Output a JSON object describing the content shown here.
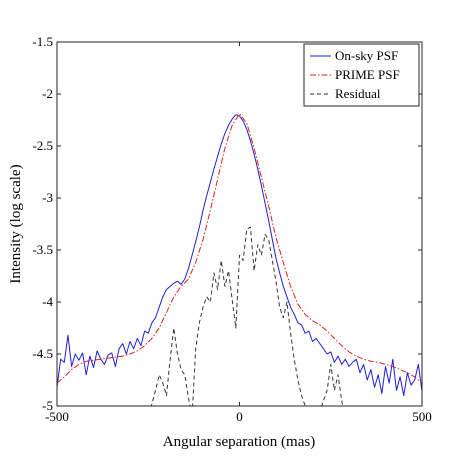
{
  "chart_data": {
    "type": "line",
    "title": "",
    "xlabel": "Angular separation (mas)",
    "ylabel": "Intensity (log scale)",
    "xlim": [
      -500,
      500
    ],
    "ylim": [
      -5,
      -1.5
    ],
    "x_ticks": [
      -500,
      0,
      500
    ],
    "y_ticks": [
      -1.5,
      -2,
      -2.5,
      -3,
      -3.5,
      -4,
      -4.5,
      -5
    ],
    "x_tick_labels": [
      "-500",
      "0",
      "500"
    ],
    "y_tick_labels": [
      "-1.5",
      "-2",
      "-2.5",
      "-3",
      "-3.5",
      "-4",
      "-4.5",
      "-5"
    ],
    "grid": false,
    "legend_position": "top-right",
    "series": [
      {
        "name": "On-sky PSF",
        "color": "#1f1fd6",
        "style": "solid",
        "x": [
          -500,
          -490,
          -480,
          -470,
          -460,
          -450,
          -440,
          -430,
          -420,
          -410,
          -400,
          -390,
          -380,
          -370,
          -360,
          -350,
          -340,
          -330,
          -320,
          -310,
          -300,
          -290,
          -280,
          -270,
          -260,
          -250,
          -240,
          -230,
          -220,
          -210,
          -200,
          -190,
          -180,
          -170,
          -160,
          -150,
          -140,
          -130,
          -120,
          -110,
          -100,
          -90,
          -80,
          -70,
          -60,
          -50,
          -40,
          -30,
          -20,
          -10,
          0,
          10,
          20,
          30,
          40,
          50,
          60,
          70,
          80,
          90,
          100,
          110,
          120,
          130,
          140,
          150,
          160,
          170,
          180,
          190,
          200,
          210,
          220,
          230,
          240,
          250,
          260,
          270,
          280,
          290,
          300,
          310,
          320,
          330,
          340,
          350,
          360,
          370,
          380,
          390,
          400,
          410,
          420,
          430,
          440,
          450,
          460,
          470,
          480,
          490,
          500
        ],
        "y": [
          -4.82,
          -4.55,
          -4.58,
          -4.32,
          -4.62,
          -4.5,
          -4.56,
          -4.49,
          -4.7,
          -4.52,
          -4.63,
          -4.47,
          -4.55,
          -4.6,
          -4.51,
          -4.49,
          -4.62,
          -4.45,
          -4.4,
          -4.5,
          -4.38,
          -4.45,
          -4.35,
          -4.42,
          -4.28,
          -4.3,
          -4.2,
          -4.15,
          -4.05,
          -3.95,
          -3.88,
          -3.85,
          -3.82,
          -3.8,
          -3.83,
          -3.78,
          -3.68,
          -3.55,
          -3.42,
          -3.28,
          -3.12,
          -2.98,
          -2.85,
          -2.72,
          -2.6,
          -2.48,
          -2.38,
          -2.3,
          -2.24,
          -2.2,
          -2.21,
          -2.26,
          -2.34,
          -2.45,
          -2.58,
          -2.72,
          -2.88,
          -3.05,
          -3.22,
          -3.4,
          -3.58,
          -3.72,
          -3.85,
          -3.95,
          -4.05,
          -4.12,
          -4.2,
          -4.22,
          -4.3,
          -4.28,
          -4.38,
          -4.35,
          -4.4,
          -4.45,
          -4.5,
          -4.48,
          -4.58,
          -4.52,
          -4.6,
          -4.55,
          -4.62,
          -4.58,
          -4.55,
          -4.68,
          -4.6,
          -4.75,
          -4.65,
          -4.82,
          -4.7,
          -4.88,
          -4.62,
          -4.78,
          -4.55,
          -4.85,
          -4.72,
          -4.9,
          -4.68,
          -4.8,
          -4.75,
          -4.6,
          -4.86
        ]
      },
      {
        "name": "PRIME PSF",
        "color": "#e0201c",
        "style": "dashdot",
        "x": [
          -500,
          -480,
          -460,
          -440,
          -420,
          -400,
          -380,
          -360,
          -340,
          -320,
          -300,
          -280,
          -260,
          -240,
          -220,
          -200,
          -180,
          -160,
          -140,
          -120,
          -100,
          -80,
          -60,
          -40,
          -20,
          0,
          20,
          40,
          60,
          80,
          100,
          120,
          140,
          160,
          180,
          200,
          220,
          240,
          260,
          280,
          300,
          320,
          340,
          360,
          380,
          400,
          420,
          440,
          460,
          480,
          500
        ],
        "y": [
          -4.78,
          -4.72,
          -4.65,
          -4.6,
          -4.57,
          -4.56,
          -4.55,
          -4.54,
          -4.53,
          -4.52,
          -4.5,
          -4.47,
          -4.42,
          -4.35,
          -4.25,
          -4.1,
          -3.95,
          -3.85,
          -3.78,
          -3.62,
          -3.4,
          -3.12,
          -2.82,
          -2.52,
          -2.3,
          -2.19,
          -2.28,
          -2.52,
          -2.8,
          -3.08,
          -3.38,
          -3.62,
          -3.85,
          -4.02,
          -4.12,
          -4.18,
          -4.22,
          -4.28,
          -4.35,
          -4.42,
          -4.48,
          -4.52,
          -4.55,
          -4.57,
          -4.58,
          -4.6,
          -4.62,
          -4.65,
          -4.68,
          -4.72,
          -4.78
        ]
      },
      {
        "name": "Residual",
        "color": "#333333",
        "style": "dashed",
        "x": [
          -500,
          -490,
          -480,
          -470,
          -460,
          -450,
          -440,
          -430,
          -420,
          -410,
          -400,
          -390,
          -380,
          -370,
          -360,
          -350,
          -340,
          -330,
          -320,
          -310,
          -300,
          -290,
          -280,
          -270,
          -260,
          -250,
          -240,
          -230,
          -220,
          -210,
          -200,
          -190,
          -180,
          -170,
          -160,
          -150,
          -140,
          -130,
          -120,
          -110,
          -100,
          -90,
          -80,
          -70,
          -60,
          -50,
          -40,
          -30,
          -20,
          -10,
          0,
          10,
          20,
          30,
          40,
          50,
          60,
          70,
          80,
          90,
          100,
          110,
          120,
          130,
          140,
          150,
          160,
          170,
          180,
          190,
          200,
          210,
          220,
          230,
          240,
          250,
          260,
          270,
          280,
          290,
          300,
          310,
          320,
          330,
          340,
          350,
          360,
          370,
          380,
          390,
          400,
          410,
          420,
          430,
          440,
          450,
          460,
          470,
          480,
          490,
          500
        ],
        "y": [
          -5.1,
          -5.2,
          -5.05,
          -5.3,
          -5.2,
          -5.1,
          -5.25,
          -5.2,
          -5.1,
          -5.3,
          -5.2,
          -5.15,
          -5.1,
          -5.3,
          -5.2,
          -5.1,
          -5.25,
          -5.15,
          -5.3,
          -5.2,
          -5.1,
          -5.25,
          -5.2,
          -5.3,
          -5.1,
          -5.1,
          -4.98,
          -4.85,
          -4.7,
          -4.78,
          -4.9,
          -4.55,
          -4.25,
          -4.5,
          -4.65,
          -4.7,
          -4.92,
          -5.1,
          -4.45,
          -4.2,
          -4.05,
          -3.95,
          -4.0,
          -3.72,
          -3.88,
          -3.6,
          -3.85,
          -3.7,
          -3.98,
          -4.25,
          -3.55,
          -3.6,
          -3.3,
          -3.28,
          -3.7,
          -3.45,
          -3.55,
          -3.35,
          -3.4,
          -3.6,
          -3.8,
          -4.05,
          -4.15,
          -4.0,
          -4.3,
          -4.55,
          -4.75,
          -4.9,
          -5.0,
          -5.1,
          -5.2,
          -5.15,
          -5.05,
          -4.95,
          -4.85,
          -4.6,
          -4.85,
          -4.7,
          -4.95,
          -5.1,
          -5.2,
          -5.3,
          -5.15,
          -5.2,
          -5.1,
          -5.3,
          -5.2,
          -5.25,
          -5.2,
          -5.1,
          -5.3,
          -5.2,
          -5.1,
          -5.25,
          -5.2,
          -5.1,
          -5.3,
          -5.2,
          -5.1,
          -5.2,
          -5.1
        ]
      }
    ]
  }
}
